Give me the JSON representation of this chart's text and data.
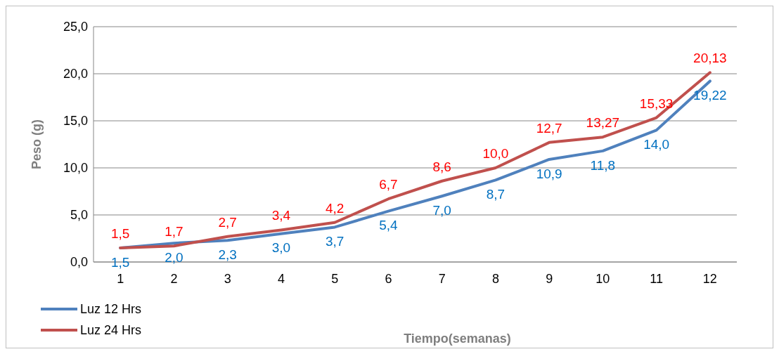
{
  "chart_data": {
    "type": "line",
    "xlabel": "Tiempo(semanas)",
    "ylabel": "Peso (g)",
    "categories": [
      "1",
      "2",
      "3",
      "4",
      "5",
      "6",
      "7",
      "8",
      "9",
      "10",
      "11",
      "12"
    ],
    "series": [
      {
        "name": "Luz 12 Hrs",
        "color": "#4f81bd",
        "values": [
          1.5,
          2.0,
          2.3,
          3.0,
          3.7,
          5.4,
          7.0,
          8.7,
          10.9,
          11.8,
          14.0,
          19.22
        ],
        "value_labels": [
          "1,5",
          "2,0",
          "2,3",
          "3,0",
          "3,7",
          "5,4",
          "7,0",
          "8,7",
          "10,9",
          "11,8",
          "14,0",
          "19,22"
        ]
      },
      {
        "name": "Luz 24 Hrs",
        "color": "#c0504d",
        "values": [
          1.5,
          1.7,
          2.7,
          3.4,
          4.2,
          6.7,
          8.6,
          10.0,
          12.7,
          13.27,
          15.33,
          20.13
        ],
        "value_labels": [
          "1,5",
          "1,7",
          "2,7",
          "3,4",
          "4,2",
          "6,7",
          "8,6",
          "10,0",
          "12,7",
          "13,27",
          "15,33",
          "20,13"
        ]
      }
    ],
    "ylim": [
      0,
      25
    ],
    "yticks": [
      {
        "value": 0,
        "label": "0,0"
      },
      {
        "value": 5,
        "label": "5,0"
      },
      {
        "value": 10,
        "label": "10,0"
      },
      {
        "value": 15,
        "label": "15,0"
      },
      {
        "value": 20,
        "label": "20,0"
      },
      {
        "value": 25,
        "label": "25,0"
      }
    ],
    "grid": "y",
    "legend": "bottom left",
    "marker": "none",
    "line_style": "solid"
  }
}
